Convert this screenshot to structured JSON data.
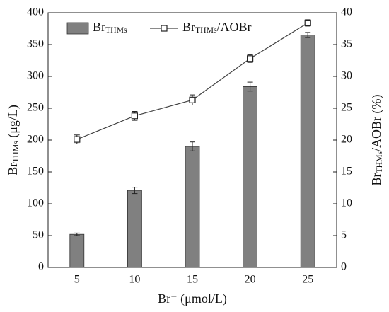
{
  "chart_data": {
    "type": "bar",
    "categories": [
      "5",
      "10",
      "15",
      "20",
      "25"
    ],
    "x_label": {
      "text": "Br⁻ (μmol/L)"
    },
    "y_label": {
      "text": "Br",
      "sub": "THMs",
      "rest": " (μg/L)"
    },
    "y2_label": {
      "text": "Br",
      "sub": "THMs",
      "rest": "/AOBr (%)"
    },
    "ylim": [
      0,
      400
    ],
    "yticks": [
      0,
      50,
      100,
      150,
      200,
      250,
      300,
      350,
      400
    ],
    "y2lim": [
      0,
      40
    ],
    "y2ticks": [
      0,
      5,
      10,
      15,
      20,
      25,
      30,
      35,
      40
    ],
    "grid": false,
    "legend": "top-left",
    "series": [
      {
        "name": "Br",
        "name_sub": "THMs",
        "type": "bar",
        "color": "#808080",
        "values": [
          52,
          121,
          190,
          284,
          365
        ],
        "errors": [
          2,
          5,
          7,
          7,
          4
        ]
      },
      {
        "name": "Br",
        "name_sub": "THMs",
        "name_rest": "/AOBr",
        "type": "line",
        "axis": "y2",
        "color": "#444444",
        "values": [
          20.1,
          23.8,
          26.3,
          32.8,
          38.4
        ],
        "errors": [
          0.7,
          0.7,
          0.8,
          0.6,
          0.5
        ]
      }
    ]
  }
}
